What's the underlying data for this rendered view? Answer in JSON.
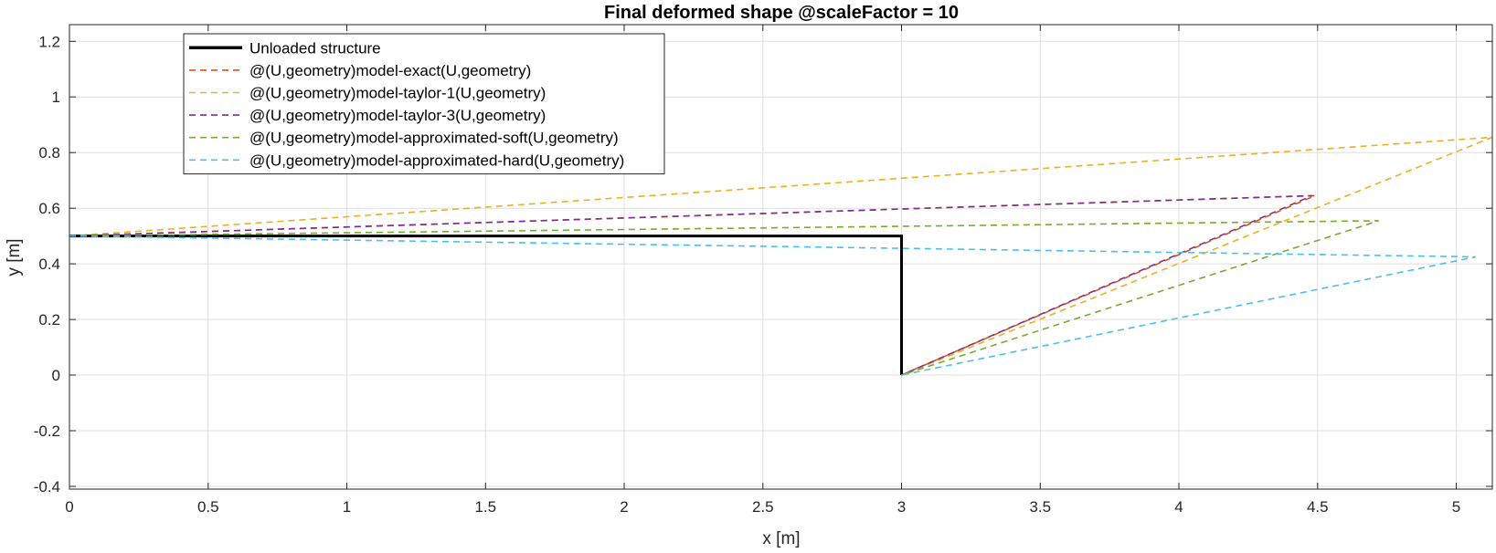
{
  "chart_data": {
    "type": "line",
    "title": "Final deformed shape @scaleFactor = 10",
    "xlabel": "x [m]",
    "ylabel": "y [m]",
    "xlim": [
      0,
      5.13
    ],
    "ylim": [
      -0.41,
      1.26
    ],
    "xticks": [
      0,
      0.5,
      1,
      1.5,
      2,
      2.5,
      3,
      3.5,
      4,
      4.5,
      5
    ],
    "xtick_labels": [
      "0",
      "0.5",
      "1",
      "1.5",
      "2",
      "2.5",
      "3",
      "3.5",
      "4",
      "4.5",
      "5"
    ],
    "yticks": [
      -0.4,
      -0.2,
      0,
      0.2,
      0.4,
      0.6,
      0.8,
      1,
      1.2
    ],
    "ytick_labels": [
      "-0.4",
      "-0.2",
      "0",
      "0.2",
      "0.4",
      "0.6",
      "0.8",
      "1",
      "1.2"
    ],
    "grid": true,
    "legend_position": "top-left",
    "series": [
      {
        "name": "Unloaded structure",
        "color": "#000000",
        "style": "solid",
        "x": [
          0,
          3,
          3
        ],
        "y": [
          0.5,
          0.5,
          0
        ]
      },
      {
        "name": "@(U,geometry)model-exact(U,geometry)",
        "color": "#D95319",
        "style": "dashed",
        "x": [
          0,
          4.49,
          3
        ],
        "y": [
          0.5,
          0.645,
          0
        ]
      },
      {
        "name": "@(U,geometry)model-taylor-1(U,geometry)",
        "color": "#EDB120",
        "style": "dashed",
        "x": [
          0,
          5.13,
          3
        ],
        "y": [
          0.5,
          0.855,
          0
        ]
      },
      {
        "name": "@(U,geometry)model-taylor-3(U,geometry)",
        "color": "#7E2F8E",
        "style": "dashed",
        "x": [
          0,
          4.48,
          3
        ],
        "y": [
          0.5,
          0.645,
          0
        ]
      },
      {
        "name": "@(U,geometry)model-approximated-soft(U,geometry)",
        "color": "#77AC30",
        "style": "dashed",
        "x": [
          0,
          4.72,
          3
        ],
        "y": [
          0.5,
          0.555,
          0
        ]
      },
      {
        "name": "@(U,geometry)model-approximated-hard(U,geometry)",
        "color": "#4DBEEE",
        "style": "dashed",
        "x": [
          0,
          5.07,
          3
        ],
        "y": [
          0.5,
          0.425,
          0
        ]
      }
    ]
  }
}
